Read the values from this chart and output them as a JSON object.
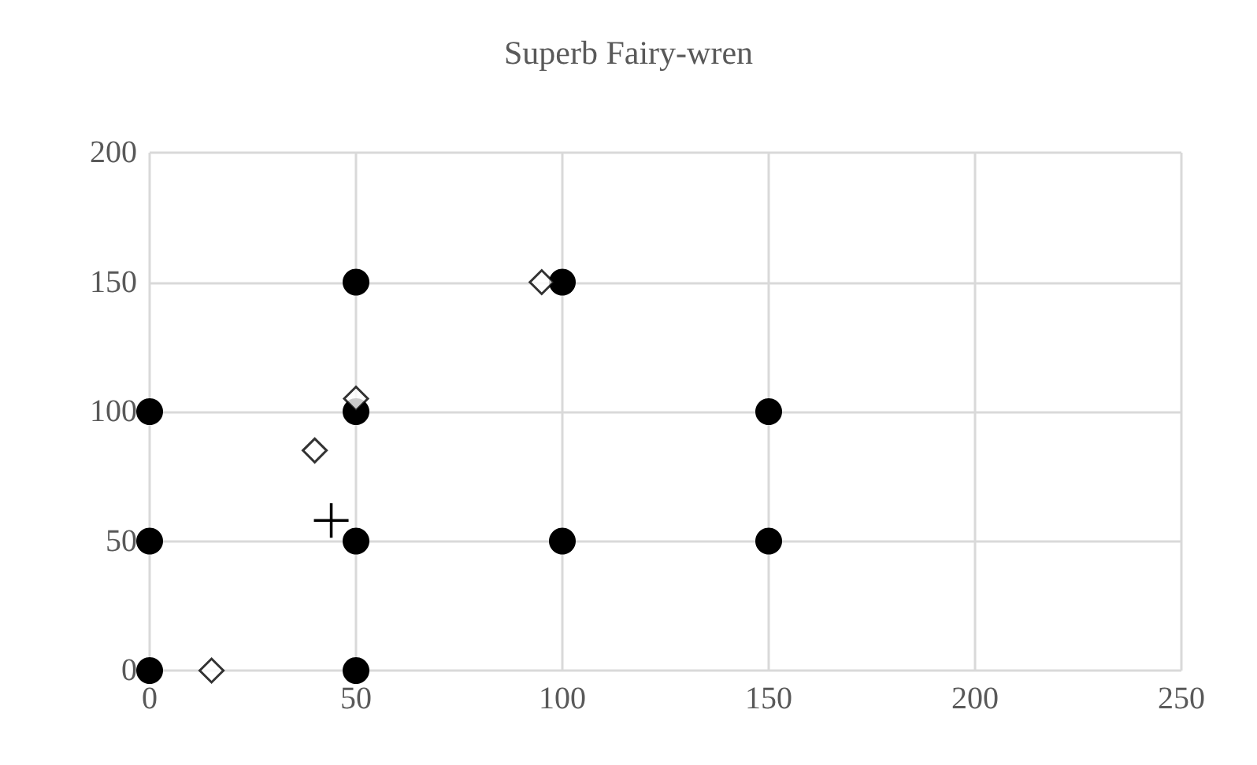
{
  "chart_data": {
    "type": "scatter",
    "title": "Superb Fairy-wren",
    "xlim": [
      0,
      250
    ],
    "xticks": [
      0,
      50,
      100,
      150,
      200,
      250
    ],
    "ylim": [
      0,
      200
    ],
    "yticks": [
      0,
      50,
      100,
      150,
      200
    ],
    "grid": true,
    "series": [
      {
        "color": "#000000",
        "marker": "circle",
        "x": [
          0,
          0,
          0,
          50,
          50,
          50,
          50,
          100,
          100,
          150,
          150
        ],
        "values": [
          0,
          50,
          100,
          0,
          50,
          100,
          150,
          50,
          150,
          50,
          100
        ]
      },
      {
        "color": "#000000",
        "marker": "diamond",
        "x": [
          15,
          40,
          50,
          95
        ],
        "values": [
          0,
          85,
          105,
          150
        ]
      },
      {
        "color": "#000000",
        "marker": "cross",
        "x": [
          44
        ],
        "values": [
          58
        ]
      }
    ]
  }
}
